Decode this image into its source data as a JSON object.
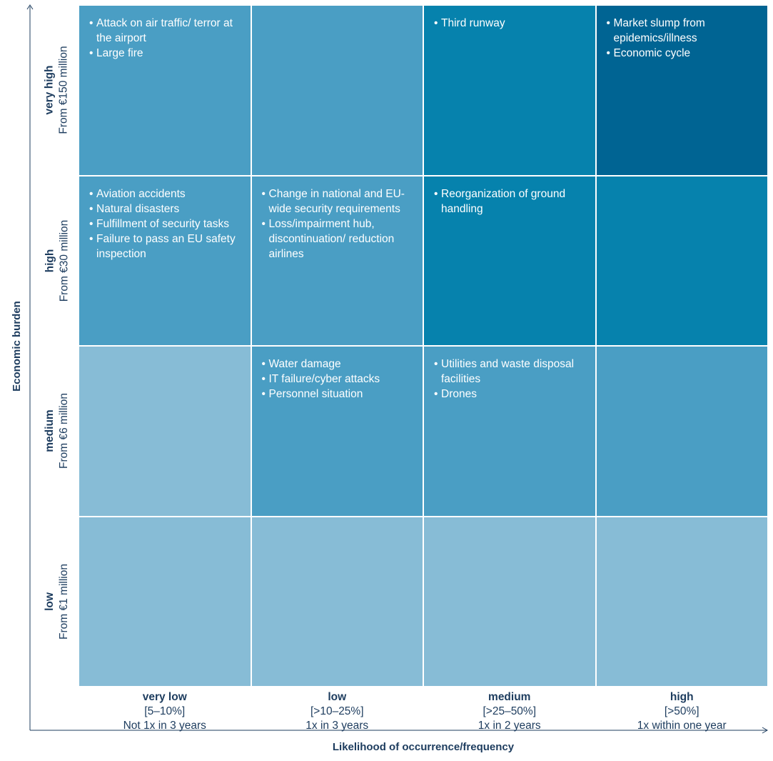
{
  "y_axis_title": "Economic burden",
  "x_axis_title": "Likelihood of occurrence/frequency",
  "rows": [
    {
      "level": "very high",
      "amount": "From €150 million"
    },
    {
      "level": "high",
      "amount": "From €30 million"
    },
    {
      "level": "medium",
      "amount": "From €6 million"
    },
    {
      "level": "low",
      "amount": "From €1 million"
    }
  ],
  "columns": [
    {
      "level": "very low",
      "range": "[5–10%]",
      "frequency": "Not 1x in 3 years"
    },
    {
      "level": "low",
      "range": "[>10–25%]",
      "frequency": "1x in 3 years"
    },
    {
      "level": "medium",
      "range": "[>25–50%]",
      "frequency": "1x in 2 years"
    },
    {
      "level": "high",
      "range": "[>50%]",
      "frequency": "1x within one year"
    }
  ],
  "cell_colors": {
    "light": "#87bcd6",
    "mid": "#4a9ec4",
    "dark": "#0682ad",
    "darkest": "#006493"
  },
  "cells": [
    [
      {
        "tone": "mid",
        "items": [
          "Attack on air traffic/ terror at the airport",
          "Large fire"
        ]
      },
      {
        "tone": "mid",
        "items": []
      },
      {
        "tone": "dark",
        "items": [
          "Third runway"
        ]
      },
      {
        "tone": "darkest",
        "items": [
          "Market slump from epidemics/illness",
          "Economic cycle"
        ]
      }
    ],
    [
      {
        "tone": "mid",
        "items": [
          "Aviation accidents",
          "Natural disasters",
          "Fulfillment of security tasks",
          "Failure to pass an EU safety inspection"
        ]
      },
      {
        "tone": "mid",
        "items": [
          "Change in national and EU-wide security requirements",
          "Loss/impairment hub, discontinuation/ reduction airlines"
        ]
      },
      {
        "tone": "dark",
        "items": [
          "Reorganization of ground handling"
        ]
      },
      {
        "tone": "dark",
        "items": []
      }
    ],
    [
      {
        "tone": "light",
        "items": []
      },
      {
        "tone": "mid",
        "items": [
          "Water damage",
          "IT failure/cyber attacks",
          "Personnel situation"
        ]
      },
      {
        "tone": "mid",
        "items": [
          "Utilities and waste disposal facilities",
          "Drones"
        ]
      },
      {
        "tone": "mid",
        "items": []
      }
    ],
    [
      {
        "tone": "light",
        "items": []
      },
      {
        "tone": "light",
        "items": []
      },
      {
        "tone": "light",
        "items": []
      },
      {
        "tone": "light",
        "items": []
      }
    ]
  ]
}
